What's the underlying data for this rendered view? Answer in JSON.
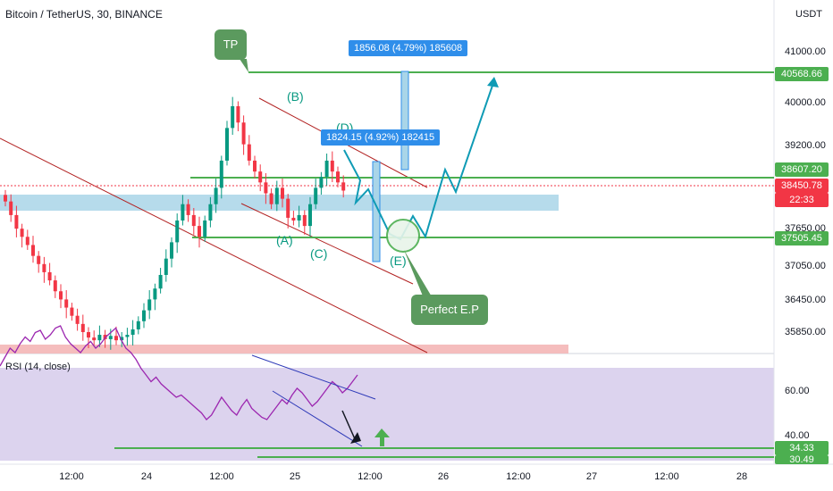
{
  "title": "Bitcoin / TetherUS, 30, BINANCE",
  "currency": "USDT",
  "rsi_title": "RSI (14, close)",
  "colors": {
    "up": "#089981",
    "down": "#f23645",
    "green_line": "#4caf50",
    "blue_label": "#2f8eea",
    "callout": "#5b9a5e",
    "rsi_bg": "#dcd3ee",
    "zone_blue": "#a9d5e8",
    "zone_red": "#f4b6b6"
  },
  "price_ticks": [
    "41000.00",
    "40000.00",
    "39200.00",
    "37650.00",
    "37050.00",
    "36450.00",
    "35850.00"
  ],
  "price_labels": {
    "tp": "40568.66",
    "resistance": "38607.20",
    "current": "38450.78",
    "countdown": "22:33",
    "support": "37505.45"
  },
  "rsi_ticks": [
    "60.00",
    "40.00"
  ],
  "rsi_labels": {
    "level": "34.33",
    "cut": "30.49"
  },
  "x_ticks": [
    "12:00",
    "24",
    "12:00",
    "25",
    "12:00",
    "26",
    "12:00",
    "27",
    "12:00",
    "28"
  ],
  "annotations": {
    "B": "(B)",
    "D": "(D)",
    "A": "(A)",
    "C": "(C)",
    "E": "(E)",
    "tp": "TP",
    "entry": "Perfect E.P",
    "measure1": "1856.08 (4.79%) 185608",
    "measure2": "1824.15 (4.92%) 182415"
  },
  "chart_data": {
    "type": "candlestick",
    "title": "Bitcoin / TetherUS, 30, BINANCE",
    "y_range": [
      35600,
      41500
    ],
    "levels": {
      "tp": 40568.66,
      "resistance": 38607.2,
      "last_price": 38450.78,
      "support": 37505.45
    },
    "close_path": [
      38250,
      38000,
      37750,
      37600,
      37450,
      37250,
      37100,
      36950,
      36800,
      36600,
      36450,
      36300,
      36150,
      36000,
      35850,
      35750,
      35700,
      35800,
      35720,
      35780,
      35700,
      35760,
      35800,
      35900,
      36050,
      36250,
      36450,
      36650,
      36900,
      37200,
      37500,
      37900,
      38200,
      38000,
      37800,
      37600,
      37900,
      38200,
      38500,
      39000,
      39600,
      40000,
      39700,
      39300,
      39000,
      38800,
      38600,
      38400,
      38200,
      38500,
      38300,
      37950,
      37900,
      38000,
      37800,
      38200,
      38500,
      38700,
      39000,
      38800,
      38600,
      38450
    ],
    "rsi": {
      "name": "RSI (14, close)",
      "y_range": [
        25,
        75
      ],
      "levels": [
        34.33,
        30.49
      ],
      "ticks": [
        60,
        40
      ],
      "values": [
        48,
        44,
        40,
        42,
        38,
        35,
        37,
        33,
        32,
        36,
        34,
        31,
        30,
        35,
        38,
        40,
        42,
        39,
        37,
        40,
        38,
        35,
        33,
        31,
        36,
        40,
        42,
        45,
        49,
        52,
        55,
        53,
        56,
        58,
        60,
        62,
        61,
        63,
        65,
        67,
        69,
        72,
        70,
        66,
        62,
        65,
        68,
        70,
        66,
        63,
        67,
        69,
        71,
        72,
        69,
        66,
        63,
        65,
        61,
        58,
        60,
        63,
        66,
        64,
        61,
        58,
        55,
        57,
        60,
        58,
        55,
        52
      ]
    }
  }
}
